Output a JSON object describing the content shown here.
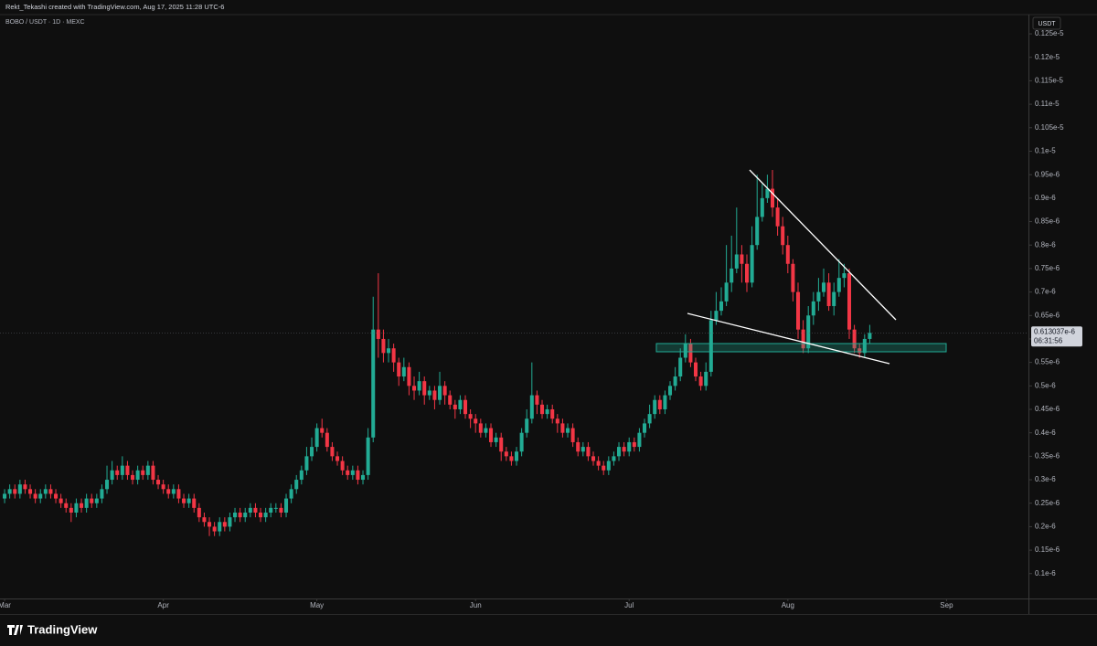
{
  "chart_data": {
    "type": "candlestick",
    "header": "Rekt_Tekashi created with TradingView.com, Aug 17, 2025 11:28 UTC-6",
    "title": "BOBO / USDT · 1D · MEXC",
    "currency": "USDT",
    "brand": "TradingView",
    "countdown": "06:31:56",
    "up_color": "#22ab94",
    "down_color": "#f23645",
    "last_price": {
      "value": 6.13037e-07,
      "label": "0.613037e-6"
    },
    "xlim": [
      -0.9,
      200
    ],
    "xticks": [
      {
        "value": 0,
        "label": "Mar"
      },
      {
        "value": 31,
        "label": "Apr"
      },
      {
        "value": 61,
        "label": "May"
      },
      {
        "value": 92,
        "label": "Jun"
      },
      {
        "value": 122,
        "label": "Jul"
      },
      {
        "value": 153,
        "label": "Aug"
      },
      {
        "value": 184,
        "label": "Sep"
      }
    ],
    "ylim": [
      4.7e-08,
      1.291e-06
    ],
    "yticks": [
      {
        "value": 1e-07,
        "label": "0.1e-6"
      },
      {
        "value": 1.5e-07,
        "label": "0.15e-6"
      },
      {
        "value": 2e-07,
        "label": "0.2e-6"
      },
      {
        "value": 2.5e-07,
        "label": "0.25e-6"
      },
      {
        "value": 3e-07,
        "label": "0.3e-6"
      },
      {
        "value": 3.5e-07,
        "label": "0.35e-6"
      },
      {
        "value": 4e-07,
        "label": "0.4e-6"
      },
      {
        "value": 4.5e-07,
        "label": "0.45e-6"
      },
      {
        "value": 5e-07,
        "label": "0.5e-6"
      },
      {
        "value": 5.5e-07,
        "label": "0.55e-6"
      },
      {
        "value": 6e-07,
        "label": "0.6e-6"
      },
      {
        "value": 6.5e-07,
        "label": "0.65e-6"
      },
      {
        "value": 7e-07,
        "label": "0.7e-6"
      },
      {
        "value": 7.5e-07,
        "label": "0.75e-6"
      },
      {
        "value": 8e-07,
        "label": "0.8e-6"
      },
      {
        "value": 8.5e-07,
        "label": "0.85e-6"
      },
      {
        "value": 9e-07,
        "label": "0.9e-6"
      },
      {
        "value": 9.5e-07,
        "label": "0.95e-6"
      },
      {
        "value": 1e-06,
        "label": "0.1e-5"
      },
      {
        "value": 1.05e-06,
        "label": "0.105e-5"
      },
      {
        "value": 1.1e-06,
        "label": "0.11e-5"
      },
      {
        "value": 1.15e-06,
        "label": "0.115e-5"
      },
      {
        "value": 1.2e-06,
        "label": "0.12e-5"
      },
      {
        "value": 1.25e-06,
        "label": "0.125e-5"
      }
    ],
    "open": [
      2.6e-07,
      2.7e-07,
      2.8e-07,
      2.7e-07,
      2.9e-07,
      2.8e-07,
      2.7e-07,
      2.6e-07,
      2.7e-07,
      2.8e-07,
      2.7e-07,
      2.6e-07,
      2.5e-07,
      2.4e-07,
      2.3e-07,
      2.5e-07,
      2.4e-07,
      2.6e-07,
      2.5e-07,
      2.6e-07,
      2.8e-07,
      3e-07,
      3.2e-07,
      3.1e-07,
      3.3e-07,
      3.1e-07,
      3e-07,
      3.2e-07,
      3.1e-07,
      3.3e-07,
      3e-07,
      2.9e-07,
      2.8e-07,
      2.7e-07,
      2.8e-07,
      2.6e-07,
      2.5e-07,
      2.6e-07,
      2.4e-07,
      2.2e-07,
      2.1e-07,
      2e-07,
      1.9e-07,
      2.1e-07,
      2e-07,
      2.2e-07,
      2.3e-07,
      2.2e-07,
      2.3e-07,
      2.4e-07,
      2.3e-07,
      2.2e-07,
      2.3e-07,
      2.4e-07,
      2.4e-07,
      2.3e-07,
      2.6e-07,
      2.8e-07,
      3e-07,
      3.2e-07,
      3.5e-07,
      3.7e-07,
      4.1e-07,
      4e-07,
      3.7e-07,
      3.5e-07,
      3.4e-07,
      3.2e-07,
      3.1e-07,
      3.2e-07,
      3e-07,
      3.1e-07,
      3.9e-07,
      6.2e-07,
      6e-07,
      5.7e-07,
      5.8e-07,
      5.5e-07,
      5.2e-07,
      5.4e-07,
      5e-07,
      4.9e-07,
      5.1e-07,
      4.8e-07,
      4.9e-07,
      4.7e-07,
      5e-07,
      4.8e-07,
      4.6e-07,
      4.5e-07,
      4.7e-07,
      4.4e-07,
      4.3e-07,
      4.2e-07,
      4e-07,
      4.1e-07,
      3.8e-07,
      3.9e-07,
      3.6e-07,
      3.5e-07,
      3.4e-07,
      3.6e-07,
      4e-07,
      4.3e-07,
      4.8e-07,
      4.6e-07,
      4.4e-07,
      4.5e-07,
      4.3e-07,
      4.2e-07,
      4e-07,
      4.1e-07,
      3.8e-07,
      3.6e-07,
      3.7e-07,
      3.5e-07,
      3.4e-07,
      3.3e-07,
      3.2e-07,
      3.4e-07,
      3.5e-07,
      3.7e-07,
      3.6e-07,
      3.8e-07,
      3.7e-07,
      4e-07,
      4.2e-07,
      4.4e-07,
      4.7e-07,
      4.5e-07,
      4.8e-07,
      5e-07,
      5.2e-07,
      5.6e-07,
      5.9e-07,
      5.5e-07,
      5.2e-07,
      5e-07,
      5.3e-07,
      6.4e-07,
      6.6e-07,
      6.8e-07,
      7.2e-07,
      7.5e-07,
      7.8e-07,
      7.6e-07,
      7.2e-07,
      8e-07,
      8.6e-07,
      9e-07,
      9.2e-07,
      8.8e-07,
      8.4e-07,
      8e-07,
      7.6e-07,
      7e-07,
      6.2e-07,
      5.8e-07,
      6.5e-07,
      6.8e-07,
      7e-07,
      7.2e-07,
      6.7e-07,
      7e-07,
      7.3e-07,
      7.4e-07,
      6.2e-07,
      5.8e-07,
      5.7e-07,
      6e-07
    ],
    "high": [
      2.8e-07,
      2.9e-07,
      2.9e-07,
      3e-07,
      3e-07,
      2.9e-07,
      2.8e-07,
      2.8e-07,
      2.9e-07,
      2.9e-07,
      2.8e-07,
      2.7e-07,
      2.6e-07,
      2.5e-07,
      2.6e-07,
      2.6e-07,
      2.7e-07,
      2.7e-07,
      2.7e-07,
      2.9e-07,
      3.3e-07,
      3.4e-07,
      3.3e-07,
      3.5e-07,
      3.4e-07,
      3.2e-07,
      3.3e-07,
      3.3e-07,
      3.4e-07,
      3.4e-07,
      3.1e-07,
      3e-07,
      2.9e-07,
      2.9e-07,
      2.9e-07,
      2.7e-07,
      2.7e-07,
      2.7e-07,
      2.5e-07,
      2.3e-07,
      2.2e-07,
      2.1e-07,
      2.2e-07,
      2.2e-07,
      2.3e-07,
      2.4e-07,
      2.4e-07,
      2.4e-07,
      2.5e-07,
      2.5e-07,
      2.4e-07,
      2.4e-07,
      2.5e-07,
      2.5e-07,
      2.5e-07,
      2.7e-07,
      2.9e-07,
      3.1e-07,
      3.3e-07,
      3.7e-07,
      3.9e-07,
      4.2e-07,
      4.3e-07,
      4.1e-07,
      3.8e-07,
      3.6e-07,
      3.5e-07,
      3.3e-07,
      3.3e-07,
      3.3e-07,
      3.2e-07,
      4.1e-07,
      6.9e-07,
      7.4e-07,
      6.2e-07,
      6e-07,
      5.9e-07,
      5.6e-07,
      5.6e-07,
      5.5e-07,
      5.2e-07,
      5.3e-07,
      5.2e-07,
      5e-07,
      5e-07,
      5.3e-07,
      5.1e-07,
      4.9e-07,
      4.7e-07,
      4.8e-07,
      4.8e-07,
      4.5e-07,
      4.4e-07,
      4.3e-07,
      4.2e-07,
      4.2e-07,
      4e-07,
      4e-07,
      3.7e-07,
      3.6e-07,
      3.7e-07,
      4.1e-07,
      4.5e-07,
      5.5e-07,
      4.9e-07,
      4.7e-07,
      4.6e-07,
      4.6e-07,
      4.4e-07,
      4.3e-07,
      4.2e-07,
      4.2e-07,
      3.9e-07,
      3.8e-07,
      3.8e-07,
      3.6e-07,
      3.5e-07,
      3.4e-07,
      3.5e-07,
      3.6e-07,
      3.8e-07,
      3.8e-07,
      3.9e-07,
      3.9e-07,
      4.1e-07,
      4.3e-07,
      4.6e-07,
      4.8e-07,
      4.8e-07,
      4.9e-07,
      5.1e-07,
      5.4e-07,
      5.8e-07,
      6.1e-07,
      6e-07,
      5.6e-07,
      5.3e-07,
      5.5e-07,
      6.6e-07,
      7e-07,
      7.1e-07,
      8e-07,
      8.2e-07,
      8.8e-07,
      8e-07,
      7.8e-07,
      8.4e-07,
      9.5e-07,
      9.3e-07,
      9.5e-07,
      9.6e-07,
      9e-07,
      8.6e-07,
      8.2e-07,
      7.7e-07,
      7.2e-07,
      6.4e-07,
      6.7e-07,
      7e-07,
      7.3e-07,
      7.5e-07,
      7.4e-07,
      7.2e-07,
      7.7e-07,
      7.6e-07,
      7.5e-07,
      6.3e-07,
      5.9e-07,
      6.1e-07,
      6.3e-07
    ],
    "low": [
      2.5e-07,
      2.6e-07,
      2.6e-07,
      2.6e-07,
      2.7e-07,
      2.6e-07,
      2.5e-07,
      2.5e-07,
      2.6e-07,
      2.6e-07,
      2.5e-07,
      2.4e-07,
      2.3e-07,
      2.1e-07,
      2.2e-07,
      2.3e-07,
      2.3e-07,
      2.4e-07,
      2.4e-07,
      2.5e-07,
      2.7e-07,
      2.9e-07,
      3e-07,
      3e-07,
      3e-07,
      2.9e-07,
      2.9e-07,
      3e-07,
      3e-07,
      2.9e-07,
      2.8e-07,
      2.7e-07,
      2.6e-07,
      2.6e-07,
      2.5e-07,
      2.4e-07,
      2.4e-07,
      2.3e-07,
      2.1e-07,
      2e-07,
      1.8e-07,
      1.8e-07,
      1.8e-07,
      1.9e-07,
      1.9e-07,
      2.1e-07,
      2.1e-07,
      2.1e-07,
      2.2e-07,
      2.2e-07,
      2.1e-07,
      2.1e-07,
      2.2e-07,
      2.3e-07,
      2.2e-07,
      2.2e-07,
      2.5e-07,
      2.7e-07,
      2.9e-07,
      3.1e-07,
      3.4e-07,
      3.6e-07,
      3.9e-07,
      3.6e-07,
      3.4e-07,
      3.3e-07,
      3.1e-07,
      3e-07,
      3e-07,
      2.9e-07,
      2.9e-07,
      3e-07,
      3.8e-07,
      5.6e-07,
      5.5e-07,
      5.5e-07,
      5.3e-07,
      5e-07,
      5.1e-07,
      4.8e-07,
      4.7e-07,
      4.8e-07,
      4.6e-07,
      4.7e-07,
      4.5e-07,
      4.6e-07,
      4.6e-07,
      4.5e-07,
      4.3e-07,
      4.4e-07,
      4.3e-07,
      4.1e-07,
      4e-07,
      3.9e-07,
      3.9e-07,
      3.7e-07,
      3.7e-07,
      3.4e-07,
      3.4e-07,
      3.3e-07,
      3.3e-07,
      3.5e-07,
      3.9e-07,
      4.2e-07,
      4.4e-07,
      4.3e-07,
      4.3e-07,
      4.2e-07,
      4e-07,
      3.9e-07,
      3.9e-07,
      3.7e-07,
      3.5e-07,
      3.5e-07,
      3.4e-07,
      3.3e-07,
      3.2e-07,
      3.1e-07,
      3.1e-07,
      3.3e-07,
      3.4e-07,
      3.5e-07,
      3.5e-07,
      3.6e-07,
      3.6e-07,
      3.9e-07,
      4.1e-07,
      4.3e-07,
      4.4e-07,
      4.4e-07,
      4.7e-07,
      4.9e-07,
      5.1e-07,
      5.5e-07,
      5.4e-07,
      5.1e-07,
      4.9e-07,
      4.9e-07,
      5.2e-07,
      6.3e-07,
      6.5e-07,
      6.7e-07,
      7e-07,
      7.4e-07,
      7.2e-07,
      7e-07,
      7.1e-07,
      7.9e-07,
      8.5e-07,
      8.9e-07,
      8.6e-07,
      8.2e-07,
      7.8e-07,
      7.4e-07,
      6.8e-07,
      6e-07,
      5.7e-07,
      5.7e-07,
      6.3e-07,
      6.6e-07,
      6.9e-07,
      6.6e-07,
      6.5e-07,
      6.9e-07,
      7.1e-07,
      6e-07,
      5.7e-07,
      5.6e-07,
      5.6e-07,
      5.9e-07
    ],
    "close": [
      2.7e-07,
      2.8e-07,
      2.7e-07,
      2.9e-07,
      2.8e-07,
      2.7e-07,
      2.6e-07,
      2.7e-07,
      2.8e-07,
      2.7e-07,
      2.6e-07,
      2.5e-07,
      2.4e-07,
      2.3e-07,
      2.5e-07,
      2.4e-07,
      2.6e-07,
      2.5e-07,
      2.6e-07,
      2.8e-07,
      3e-07,
      3.2e-07,
      3.1e-07,
      3.3e-07,
      3.1e-07,
      3e-07,
      3.2e-07,
      3.1e-07,
      3.3e-07,
      3e-07,
      2.9e-07,
      2.8e-07,
      2.7e-07,
      2.8e-07,
      2.6e-07,
      2.5e-07,
      2.6e-07,
      2.4e-07,
      2.2e-07,
      2.1e-07,
      2e-07,
      1.9e-07,
      2.1e-07,
      2e-07,
      2.2e-07,
      2.3e-07,
      2.2e-07,
      2.3e-07,
      2.4e-07,
      2.3e-07,
      2.2e-07,
      2.3e-07,
      2.4e-07,
      2.4e-07,
      2.3e-07,
      2.6e-07,
      2.8e-07,
      3e-07,
      3.2e-07,
      3.5e-07,
      3.7e-07,
      4.1e-07,
      4e-07,
      3.7e-07,
      3.5e-07,
      3.4e-07,
      3.2e-07,
      3.1e-07,
      3.2e-07,
      3e-07,
      3.1e-07,
      3.9e-07,
      6.2e-07,
      6e-07,
      5.7e-07,
      5.8e-07,
      5.5e-07,
      5.2e-07,
      5.4e-07,
      5e-07,
      4.9e-07,
      5.1e-07,
      4.8e-07,
      4.9e-07,
      4.7e-07,
      5e-07,
      4.8e-07,
      4.6e-07,
      4.5e-07,
      4.7e-07,
      4.4e-07,
      4.3e-07,
      4.2e-07,
      4e-07,
      4.1e-07,
      3.8e-07,
      3.9e-07,
      3.6e-07,
      3.5e-07,
      3.4e-07,
      3.6e-07,
      4e-07,
      4.3e-07,
      4.8e-07,
      4.6e-07,
      4.4e-07,
      4.5e-07,
      4.3e-07,
      4.2e-07,
      4e-07,
      4.1e-07,
      3.8e-07,
      3.6e-07,
      3.7e-07,
      3.5e-07,
      3.4e-07,
      3.3e-07,
      3.2e-07,
      3.4e-07,
      3.5e-07,
      3.7e-07,
      3.6e-07,
      3.8e-07,
      3.7e-07,
      4e-07,
      4.2e-07,
      4.4e-07,
      4.7e-07,
      4.5e-07,
      4.8e-07,
      5e-07,
      5.2e-07,
      5.6e-07,
      5.9e-07,
      5.5e-07,
      5.2e-07,
      5e-07,
      5.3e-07,
      6.4e-07,
      6.6e-07,
      6.8e-07,
      7.2e-07,
      7.5e-07,
      7.8e-07,
      7.6e-07,
      7.2e-07,
      8e-07,
      8.6e-07,
      9e-07,
      9.2e-07,
      8.8e-07,
      8.4e-07,
      8e-07,
      7.6e-07,
      7e-07,
      6.2e-07,
      5.8e-07,
      6.5e-07,
      6.8e-07,
      7e-07,
      7.2e-07,
      6.7e-07,
      7e-07,
      7.3e-07,
      7.4e-07,
      6.2e-07,
      5.8e-07,
      5.7e-07,
      6e-07,
      6.13037e-07
    ]
  }
}
